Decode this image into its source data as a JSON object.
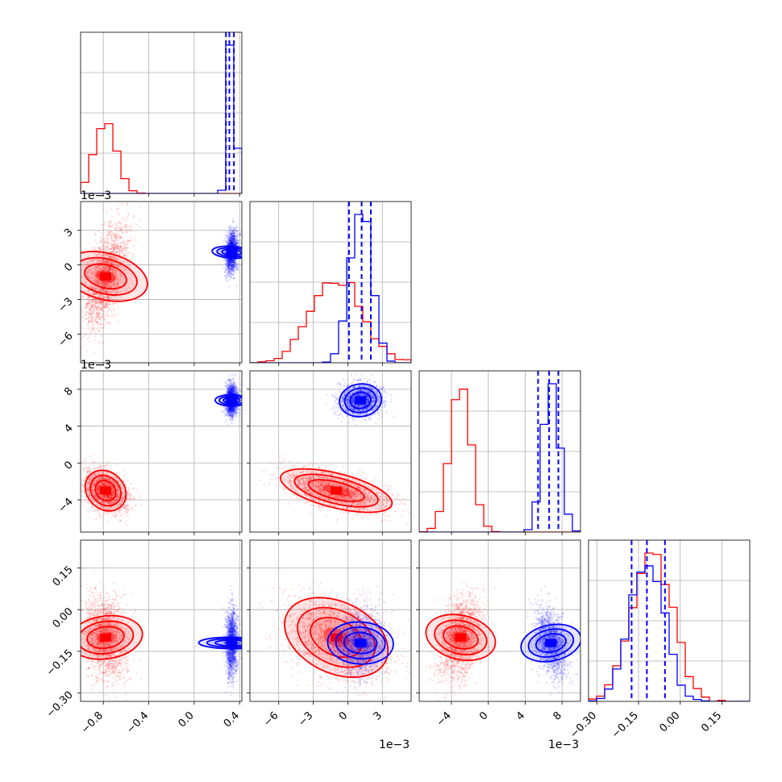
{
  "figure": {
    "title": ""
  },
  "colors": {
    "series_a": "#ff0000",
    "series_b": "#0000ff",
    "grid": "#b0b0b0",
    "axes": "#000000"
  },
  "chart_data": {
    "type": "corner",
    "grid": true,
    "parameters": [
      {
        "ticks": [
          "−0.8",
          "−0.4",
          "0.0",
          "0.4"
        ],
        "tick_values": [
          -0.8,
          -0.4,
          0.0,
          0.4
        ],
        "range": [
          -1.0,
          0.42
        ],
        "offset_label": ""
      },
      {
        "ticks": [
          "−6",
          "−3",
          "0",
          "3"
        ],
        "tick_values": [
          -6,
          -3,
          0,
          3
        ],
        "range": [
          -8.5,
          5.5
        ],
        "offset_label": "1e−3"
      },
      {
        "ticks": [
          "−4",
          "0",
          "4",
          "8"
        ],
        "tick_values": [
          -4,
          0,
          4,
          8
        ],
        "range": [
          -7.5,
          10.0
        ],
        "offset_label": "1e−3"
      },
      {
        "ticks": [
          "−0.30",
          "−0.15",
          "0.00",
          "0.15"
        ],
        "tick_values": [
          -0.3,
          -0.15,
          0.0,
          0.15
        ],
        "range": [
          -0.33,
          0.25
        ],
        "offset_label": ""
      }
    ],
    "series": [
      {
        "color": "#ff0000",
        "mean": [
          -0.78,
          -1.0,
          -3.0,
          -0.1
        ],
        "std": [
          0.09,
          2.2,
          1.1,
          0.07
        ],
        "hist_peak": [
          -0.8,
          -0.5,
          -3.2,
          -0.13
        ]
      },
      {
        "color": "#0000ff",
        "mean": [
          0.33,
          1.1,
          6.8,
          -0.12
        ],
        "std": [
          0.025,
          0.9,
          0.9,
          0.06
        ],
        "quantiles": [
          [
            0.28,
            0.31,
            0.35
          ],
          [
            0.1,
            1.2,
            2.0
          ],
          [
            5.4,
            6.6,
            7.6
          ],
          [
            -0.175,
            -0.12,
            -0.055
          ]
        ]
      }
    ]
  }
}
